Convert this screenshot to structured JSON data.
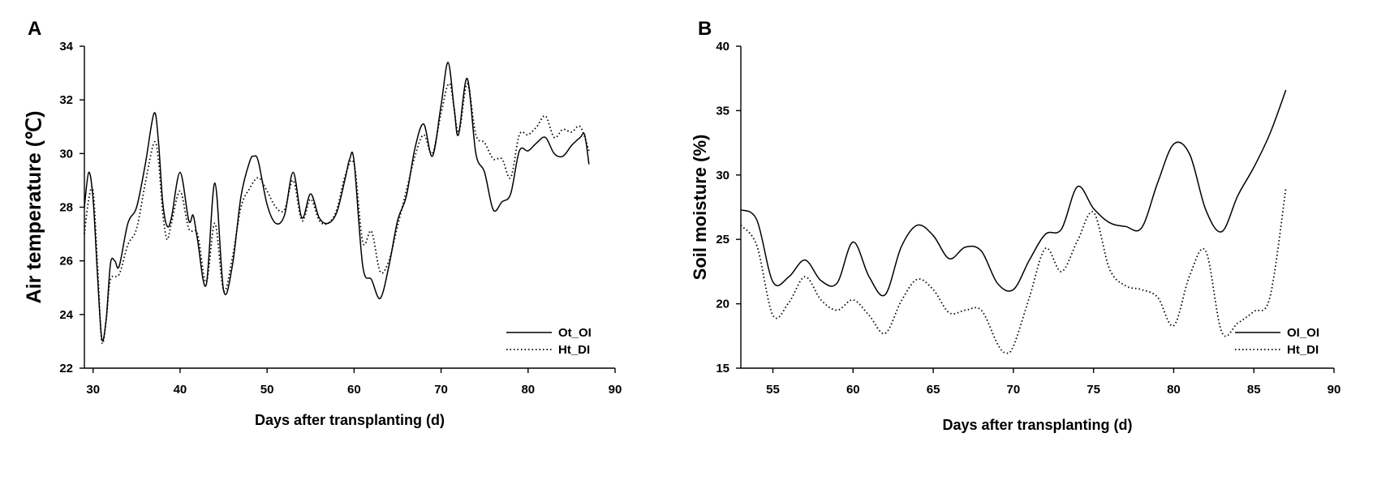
{
  "chart_data": [
    {
      "type": "line",
      "panel_label": "A",
      "title": "",
      "xlabel": "Days after transplanting (d)",
      "ylabel": "Air temperature (℃)",
      "xlim": [
        29,
        90
      ],
      "ylim": [
        22,
        34
      ],
      "xticks": [
        30,
        40,
        50,
        60,
        70,
        80,
        90
      ],
      "yticks": [
        22,
        24,
        26,
        28,
        30,
        32,
        34
      ],
      "legend_position": "bottom-right",
      "series": [
        {
          "name": "Ot_OI",
          "style": "solid",
          "x": [
            29,
            29.5,
            30,
            30.5,
            31,
            31.5,
            32,
            32.5,
            33,
            34,
            35,
            36,
            37,
            37.5,
            38,
            38.5,
            39,
            40,
            41,
            41.5,
            42,
            43,
            44,
            45,
            46,
            47,
            48,
            48.5,
            49,
            50,
            51,
            52,
            53,
            54,
            55,
            56,
            57,
            58,
            59,
            59.5,
            60,
            61,
            62,
            63,
            64,
            65,
            66,
            67,
            68,
            69,
            70,
            70.8,
            71.5,
            72,
            73,
            74,
            75,
            76,
            77,
            78,
            79,
            80,
            81,
            82,
            83,
            84,
            85,
            86,
            86.5,
            87
          ],
          "values": [
            28.0,
            29.3,
            28.3,
            25.5,
            23.1,
            23.8,
            25.9,
            26.0,
            25.8,
            27.4,
            28.0,
            29.6,
            31.5,
            30.5,
            28.2,
            27.3,
            27.6,
            29.3,
            27.5,
            27.7,
            26.8,
            25.1,
            28.9,
            24.9,
            25.8,
            28.4,
            29.7,
            29.9,
            29.7,
            28.1,
            27.4,
            27.7,
            29.3,
            27.6,
            28.5,
            27.6,
            27.4,
            27.8,
            29.1,
            29.8,
            29.7,
            25.8,
            25.3,
            24.6,
            25.8,
            27.5,
            28.4,
            30.2,
            31.1,
            29.9,
            31.8,
            33.4,
            31.7,
            30.7,
            32.8,
            30.0,
            29.3,
            27.9,
            28.2,
            28.5,
            30.1,
            30.1,
            30.4,
            30.6,
            30.0,
            29.9,
            30.3,
            30.6,
            30.7,
            29.6
          ]
        },
        {
          "name": "Ht_DI",
          "style": "dotted",
          "x": [
            29,
            29.5,
            30,
            30.5,
            31,
            31.5,
            32,
            33,
            34,
            35,
            36,
            37,
            37.5,
            38,
            38.5,
            39,
            40,
            41,
            42,
            43,
            44,
            45,
            46,
            47,
            48,
            49,
            50,
            51,
            52,
            53,
            54,
            55,
            56,
            57,
            58,
            59,
            60,
            61,
            62,
            63,
            64,
            65,
            66,
            67,
            68,
            69,
            70,
            71,
            72,
            73,
            74,
            75,
            76,
            77,
            78,
            79,
            80,
            81,
            82,
            83,
            84,
            85,
            86,
            87
          ],
          "values": [
            27.0,
            28.3,
            28.6,
            25.9,
            23.0,
            23.8,
            25.3,
            25.5,
            26.6,
            27.2,
            28.9,
            30.4,
            29.8,
            27.8,
            26.8,
            27.4,
            28.6,
            27.2,
            27.0,
            25.2,
            27.4,
            24.9,
            26.1,
            28.0,
            28.7,
            29.1,
            28.6,
            28.0,
            27.9,
            29.0,
            27.5,
            28.3,
            27.5,
            27.4,
            27.9,
            29.2,
            29.6,
            26.7,
            27.1,
            25.6,
            26.0,
            27.3,
            28.6,
            29.9,
            30.7,
            30.0,
            31.5,
            32.6,
            30.8,
            32.6,
            30.7,
            30.4,
            29.8,
            29.8,
            29.1,
            30.7,
            30.7,
            31.0,
            31.4,
            30.6,
            30.9,
            30.8,
            31.0,
            30.1
          ]
        }
      ]
    },
    {
      "type": "line",
      "panel_label": "B",
      "title": "",
      "xlabel": "Days after transplanting (d)",
      "ylabel": "Soil moisture (%)",
      "xlim": [
        53,
        90
      ],
      "ylim": [
        15,
        40
      ],
      "xticks": [
        55,
        60,
        65,
        70,
        75,
        80,
        85,
        90
      ],
      "yticks": [
        15,
        20,
        25,
        30,
        35,
        40
      ],
      "legend_position": "bottom-right",
      "series": [
        {
          "name": "OI_OI",
          "style": "solid",
          "x": [
            53,
            54,
            55,
            56,
            57,
            58,
            59,
            60,
            61,
            62,
            63,
            64,
            65,
            66,
            67,
            68,
            69,
            70,
            71,
            72,
            73,
            74,
            75,
            76,
            77,
            78,
            79,
            80,
            81,
            82,
            83,
            84,
            85,
            86,
            87
          ],
          "values": [
            27.3,
            26.5,
            21.7,
            22.1,
            23.4,
            21.8,
            21.6,
            24.8,
            22.1,
            20.7,
            24.4,
            26.1,
            25.3,
            23.5,
            24.4,
            24.1,
            21.6,
            21.1,
            23.4,
            25.4,
            25.8,
            29.1,
            27.4,
            26.3,
            26.0,
            25.9,
            29.4,
            32.4,
            31.6,
            27.3,
            25.6,
            28.4,
            30.6,
            33.2,
            36.6
          ]
        },
        {
          "name": "Ht_DI",
          "style": "dotted",
          "x": [
            53,
            54,
            55,
            56,
            57,
            58,
            59,
            60,
            61,
            62,
            63,
            64,
            65,
            66,
            67,
            68,
            69,
            69.5,
            70,
            71,
            72,
            73,
            74,
            75,
            76,
            77,
            78,
            79,
            80,
            81,
            82,
            83,
            84,
            85,
            86,
            87
          ],
          "values": [
            26.1,
            24.5,
            19.1,
            20.1,
            22.1,
            20.3,
            19.5,
            20.3,
            19.1,
            17.7,
            20.2,
            21.9,
            21.1,
            19.3,
            19.5,
            19.5,
            16.9,
            16.2,
            16.7,
            20.5,
            24.3,
            22.5,
            24.9,
            27.1,
            22.7,
            21.4,
            21.1,
            20.5,
            18.3,
            22.2,
            24.1,
            17.8,
            18.5,
            19.4,
            20.5,
            29.0
          ]
        }
      ]
    }
  ]
}
